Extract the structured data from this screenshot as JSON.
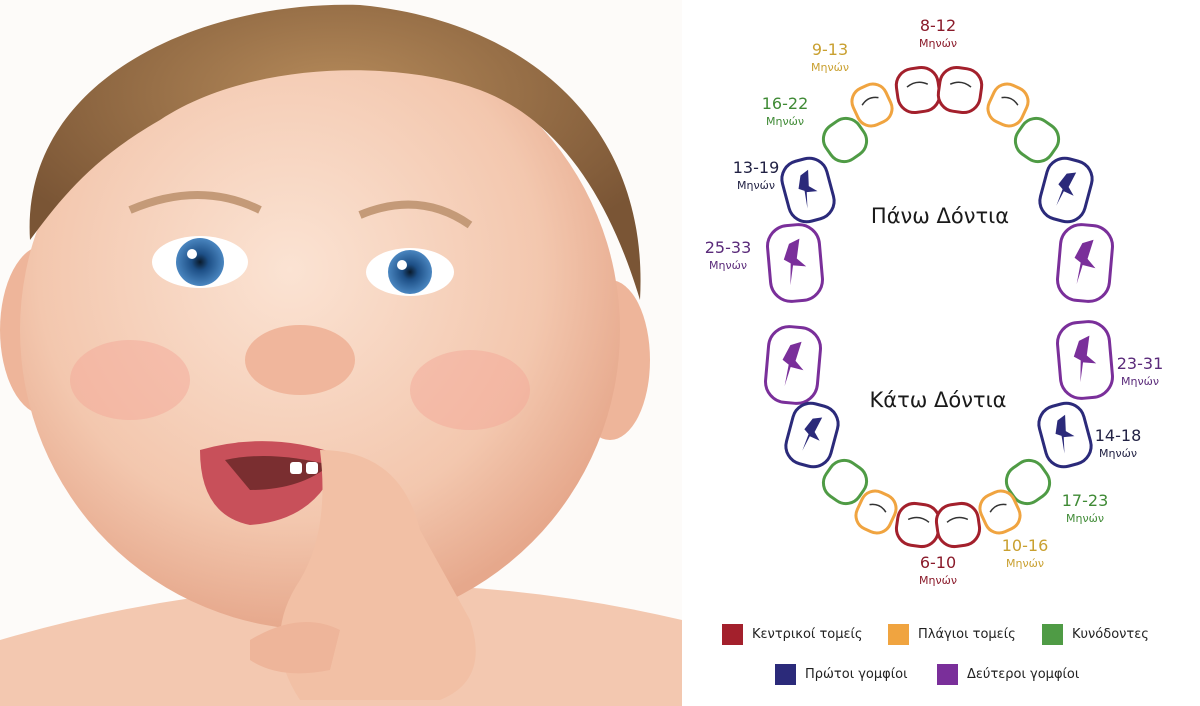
{
  "colors": {
    "central": "#a3202c",
    "lateral": "#f0a440",
    "canine": "#4f9b45",
    "first_molar": "#2b2a7a",
    "second_molar": "#7a2f9a"
  },
  "upper_label": "Πάνω Δόντια",
  "lower_label": "Κάτω Δόντια",
  "month_word": "Μηνών",
  "ages": [
    {
      "range": "8-12",
      "tooth": "central",
      "jaw": "upper"
    },
    {
      "range": "9-13",
      "tooth": "lateral",
      "jaw": "upper"
    },
    {
      "range": "16-22",
      "tooth": "canine",
      "jaw": "upper"
    },
    {
      "range": "13-19",
      "tooth": "first_molar",
      "jaw": "upper"
    },
    {
      "range": "25-33",
      "tooth": "second_molar",
      "jaw": "upper"
    },
    {
      "range": "23-31",
      "tooth": "second_molar",
      "jaw": "lower"
    },
    {
      "range": "14-18",
      "tooth": "first_molar",
      "jaw": "lower"
    },
    {
      "range": "17-23",
      "tooth": "canine",
      "jaw": "lower"
    },
    {
      "range": "10-16",
      "tooth": "lateral",
      "jaw": "lower"
    },
    {
      "range": "6-10",
      "tooth": "central",
      "jaw": "lower"
    }
  ],
  "legend": [
    {
      "label": "Κεντρικοί τομείς",
      "tooth": "central"
    },
    {
      "label": "Πλάγιοι τομείς",
      "tooth": "lateral"
    },
    {
      "label": "Κυνόδοντες",
      "tooth": "canine"
    },
    {
      "label": "Πρώτοι γομφίοι",
      "tooth": "first_molar"
    },
    {
      "label": "Δεύτεροι γομφίοι",
      "tooth": "second_molar"
    }
  ]
}
